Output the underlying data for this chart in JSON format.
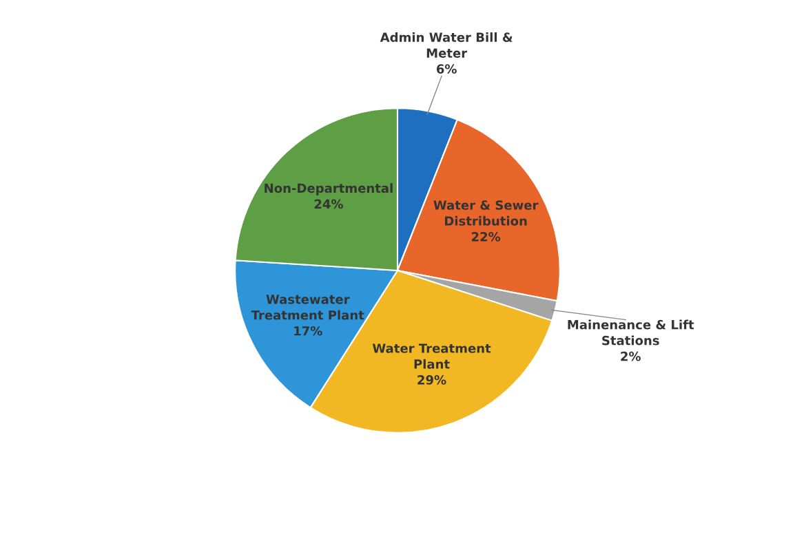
{
  "chart_data": {
    "type": "pie",
    "categories": [
      "Admin Water Bill &\nMeter",
      "Water & Sewer\nDistribution",
      "Mainenance & Lift\nStations",
      "Water Treatment\nPlant",
      "Wastewater\nTreatment Plant",
      "Non-Departmental"
    ],
    "values": [
      6,
      22,
      2,
      29,
      17,
      24
    ],
    "value_labels": [
      "6%",
      "22%",
      "2%",
      "29%",
      "17%",
      "24%"
    ],
    "colors": [
      "#1f6fc0",
      "#e8662a",
      "#a5a5a5",
      "#f2b824",
      "#2e95d8",
      "#5e9e44"
    ],
    "legend": false
  }
}
